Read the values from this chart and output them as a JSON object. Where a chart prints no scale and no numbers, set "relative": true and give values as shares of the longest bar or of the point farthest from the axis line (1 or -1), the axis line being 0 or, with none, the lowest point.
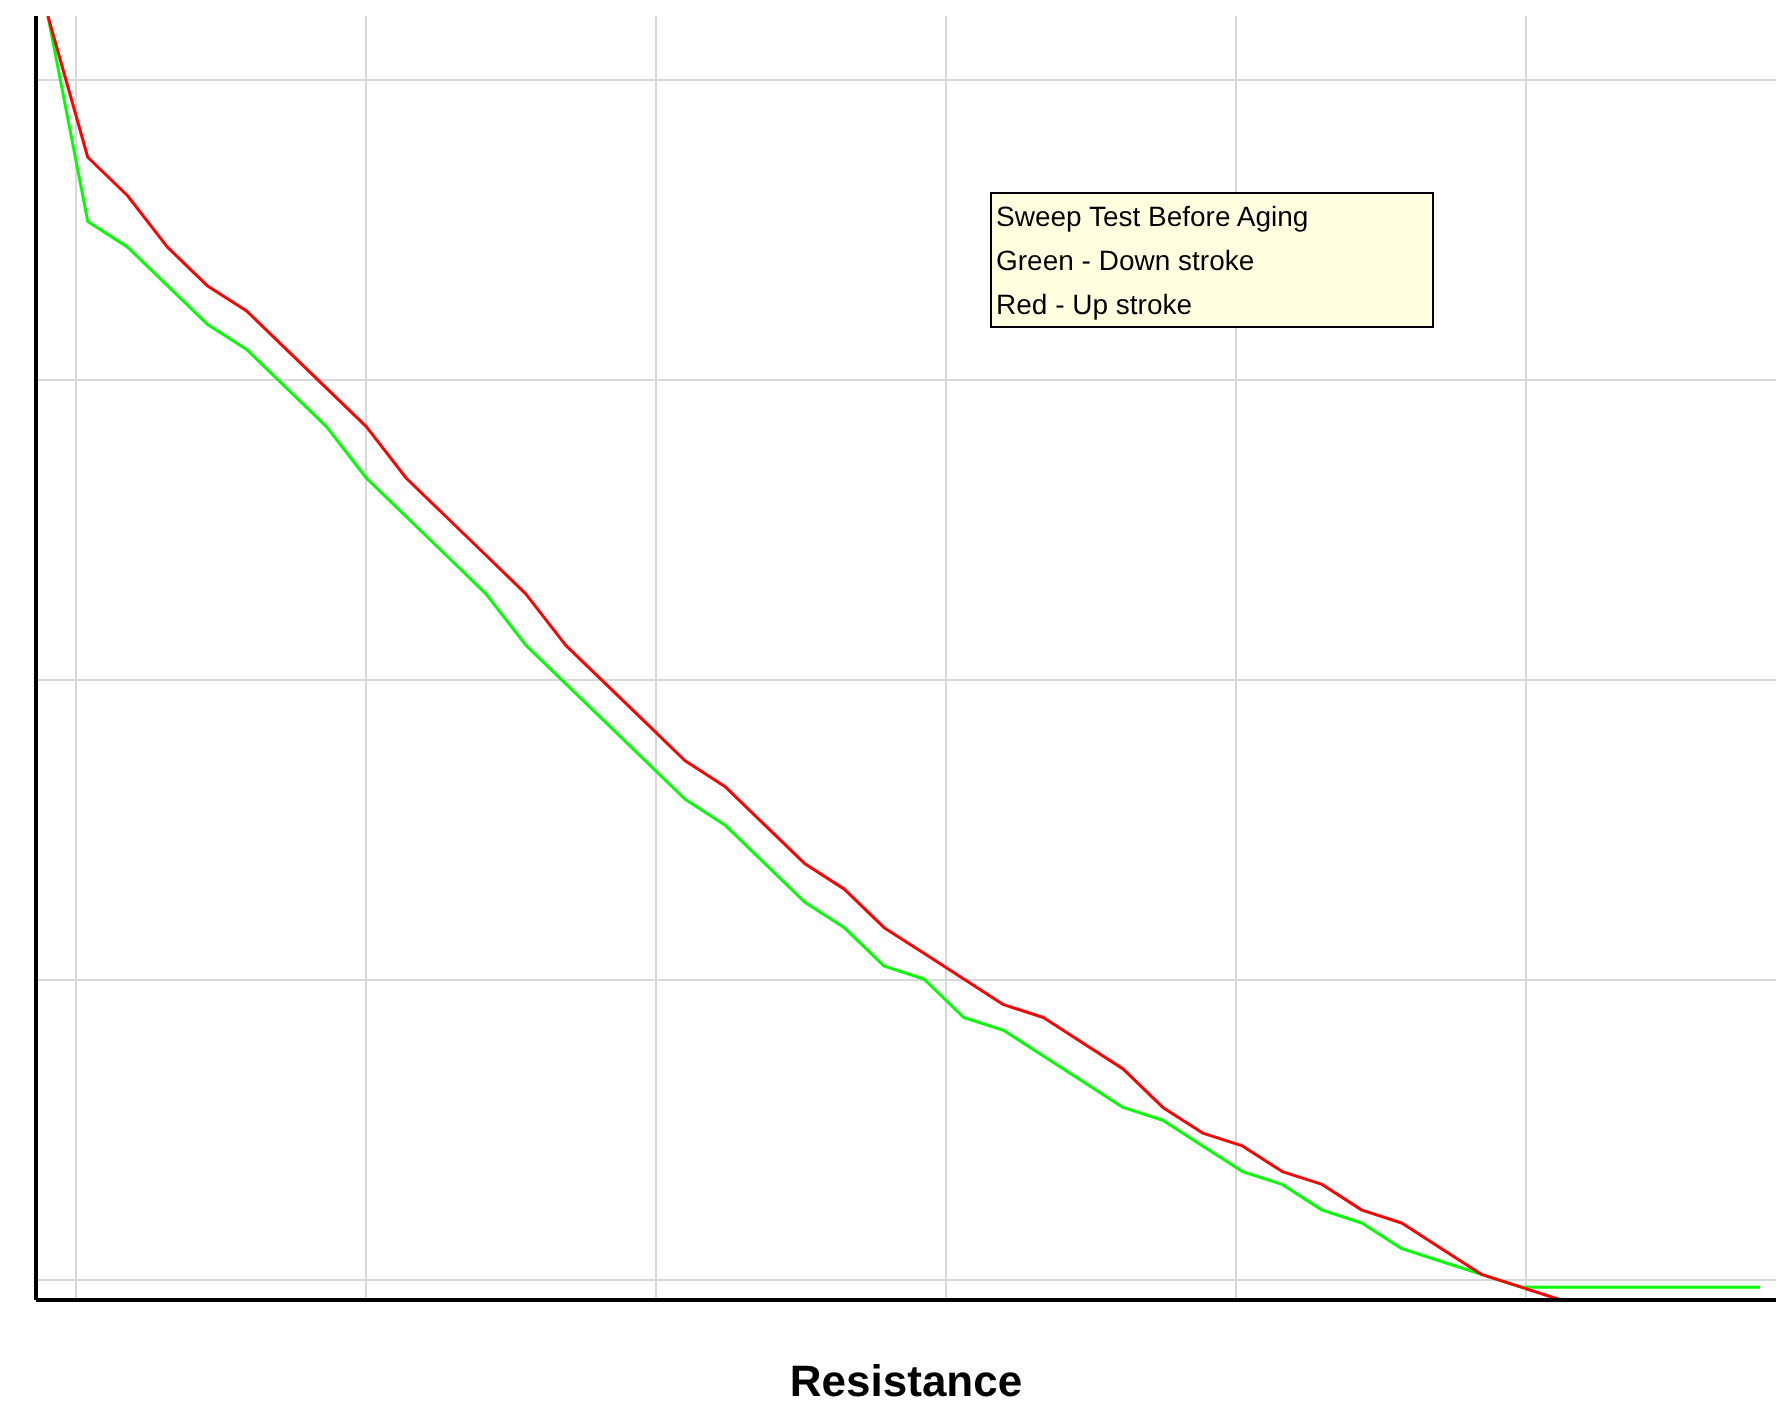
{
  "chart_data": {
    "type": "line",
    "relative": true,
    "xlabel": "Resistance",
    "grid": true,
    "marker": "none",
    "line_style": "solid",
    "annotations": [
      "Sweep Test Before Aging",
      "Green - Down stroke",
      "Red - Up stroke"
    ],
    "categories": [
      null,
      null,
      null,
      null,
      null,
      null,
      null,
      null,
      null,
      null,
      null,
      null,
      null,
      null,
      null,
      null,
      null,
      null,
      null,
      null,
      null,
      null,
      null,
      null,
      null,
      null,
      null,
      null,
      null,
      null,
      null,
      null,
      null,
      null,
      null,
      null,
      null,
      null,
      null,
      null,
      null,
      null,
      null,
      null
    ],
    "series": [
      {
        "color": "#00ff00",
        "values": [
          1.0,
          0.84,
          0.82,
          0.79,
          0.76,
          0.74,
          0.71,
          0.68,
          0.64,
          0.61,
          0.58,
          0.55,
          0.51,
          0.48,
          0.45,
          0.42,
          0.39,
          0.37,
          0.34,
          0.31,
          0.29,
          0.26,
          0.25,
          0.22,
          0.21,
          0.19,
          0.17,
          0.15,
          0.14,
          0.12,
          0.1,
          0.09,
          0.07,
          0.06,
          0.04,
          0.03,
          0.02,
          0.01,
          0.01,
          0.01,
          0.01,
          0.01,
          0.01,
          0.01
        ]
      },
      {
        "color": "#ff0000",
        "values": [
          1.0,
          0.89,
          0.86,
          0.82,
          0.79,
          0.77,
          0.74,
          0.71,
          0.68,
          0.64,
          0.61,
          0.58,
          0.55,
          0.51,
          0.48,
          0.45,
          0.42,
          0.4,
          0.37,
          0.34,
          0.32,
          0.29,
          0.27,
          0.25,
          0.23,
          0.22,
          0.2,
          0.18,
          0.15,
          0.13,
          0.12,
          0.1,
          0.09,
          0.07,
          0.06,
          0.04,
          0.02,
          0.01,
          0.0,
          0.0,
          null,
          null,
          null,
          null
        ]
      }
    ]
  }
}
